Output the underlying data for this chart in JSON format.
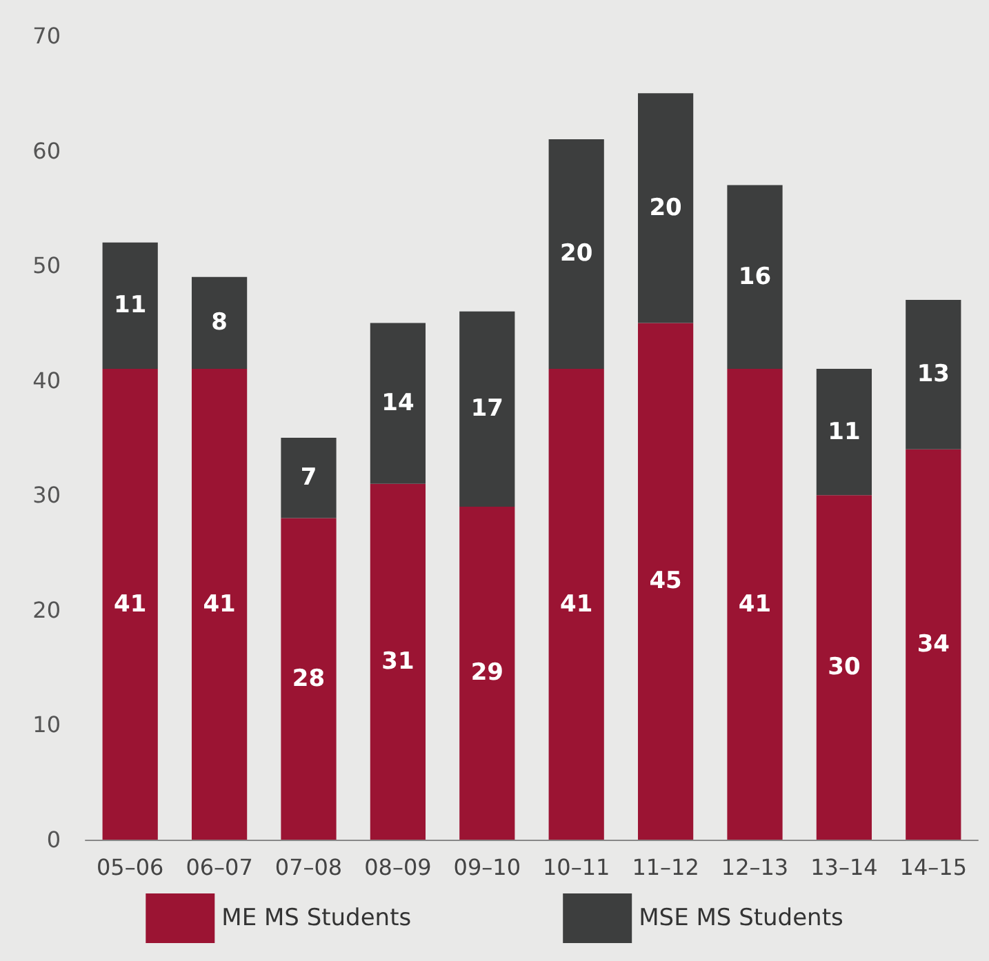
{
  "chart_data": {
    "type": "bar",
    "stacked": true,
    "data_labels": true,
    "legend": "bottom",
    "grid": false,
    "categories": [
      "05–06",
      "06–07",
      "07–08",
      "08–09",
      "09–10",
      "10–11",
      "11–12",
      "12–13",
      "13–14",
      "14–15"
    ],
    "series": [
      {
        "name": "ME MS Students",
        "color": "#9b1433",
        "values": [
          41,
          41,
          28,
          31,
          29,
          41,
          45,
          41,
          30,
          34
        ]
      },
      {
        "name": "MSE MS Students",
        "color": "#3d3e3e",
        "values": [
          11,
          8,
          7,
          14,
          17,
          20,
          20,
          16,
          11,
          13
        ]
      }
    ],
    "ylim": [
      0,
      70
    ],
    "yticks": [
      0,
      10,
      20,
      30,
      40,
      50,
      60,
      70
    ]
  }
}
